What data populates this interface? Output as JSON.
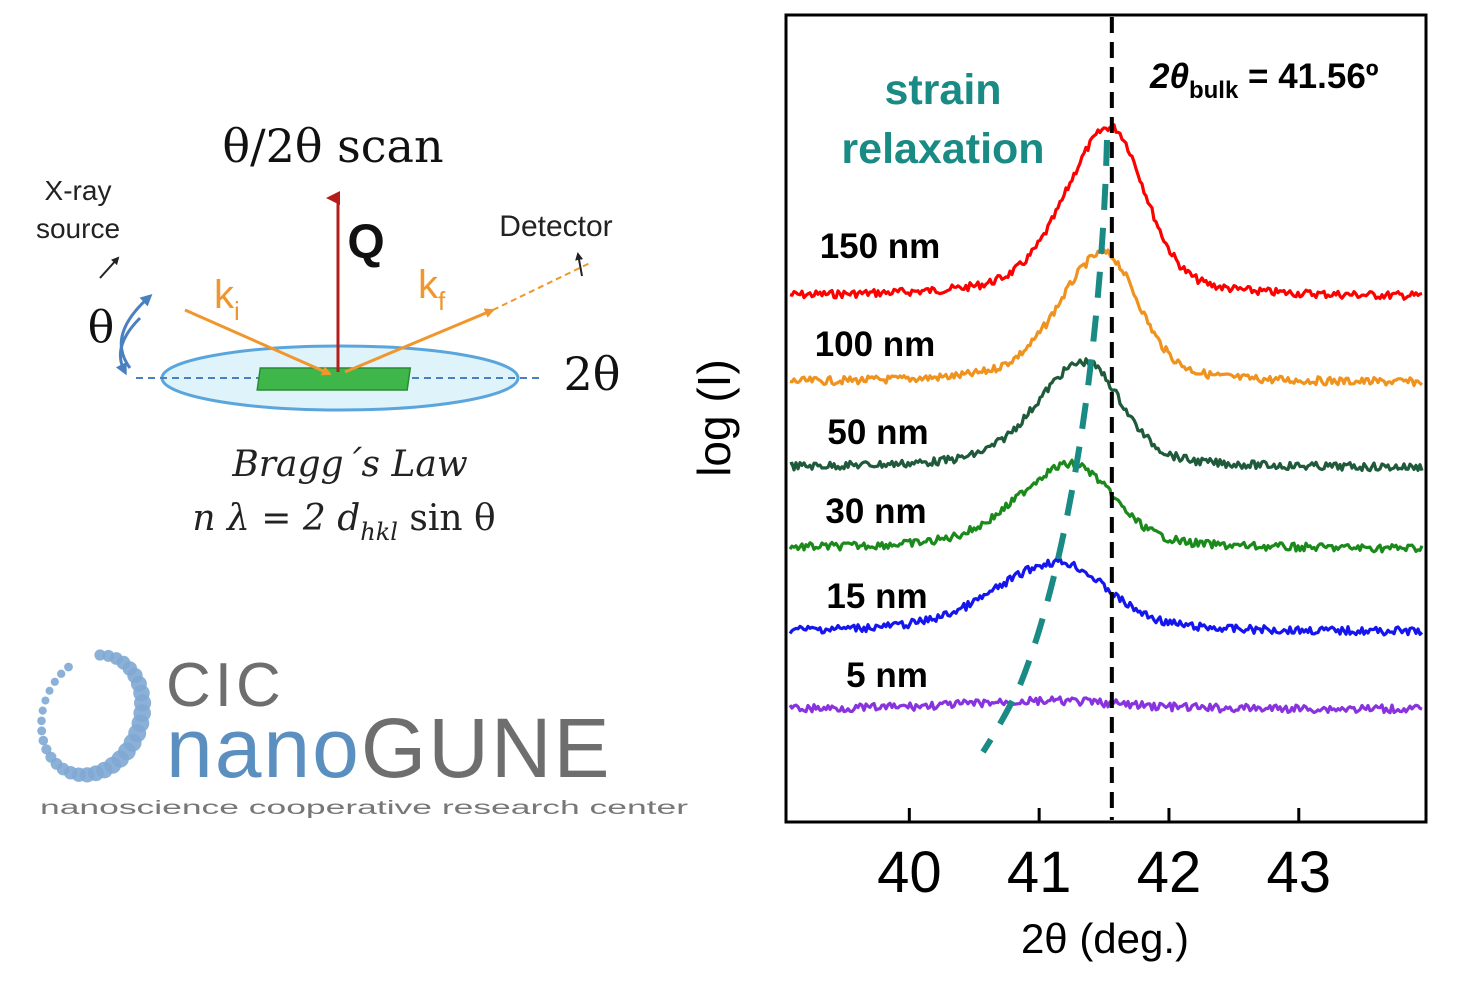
{
  "diagram": {
    "title": "θ/2θ scan",
    "source_label_line1": "X-ray",
    "source_label_line2": "source",
    "detector_label": "Detector",
    "q_label": "Q",
    "ki_label": "k",
    "ki_sub": "i",
    "kf_label": "k",
    "kf_sub": "f",
    "theta_label": "θ",
    "two_theta_label": "2θ",
    "bragg_title": "Bragg´s Law",
    "bragg_eq_prefix": "n λ = 2 d",
    "bragg_eq_sub": "hkl",
    "bragg_eq_suffix": " sin θ",
    "colors": {
      "beam": "#f0962c",
      "q_arrow": "#b71c1c",
      "sample": "#3fb64a",
      "disk": "#dff3fb",
      "disk_edge": "#5aa6dc",
      "theta_arrow": "#4a80c0"
    }
  },
  "logo": {
    "word1": "CIC",
    "word2a": "nano",
    "word2b": "GUNE",
    "tagline": "nanoscience cooperative research center",
    "colors": {
      "blue": "#5b8fc0",
      "gray": "#6e6e6e",
      "dots": "#7fa9d4"
    }
  },
  "chart_data": {
    "type": "line",
    "xlabel": "2θ (deg.)",
    "ylabel": "log (I)",
    "xlim": [
      39.05,
      43.98
    ],
    "x_ticks": [
      40,
      41,
      42,
      43
    ],
    "y_ticks": false,
    "grid": false,
    "reference_line": {
      "x": 41.56,
      "label_prefix": "2θ",
      "label_sub": "bulk",
      "label_suffix": " = 41.56º",
      "style": "dashed",
      "color": "#000000"
    },
    "annotation": {
      "line1": "strain",
      "line2": "relaxation",
      "color": "#1a8a84"
    },
    "series": [
      {
        "name": "150 nm",
        "color": "#ff0000",
        "peak_x": 41.55,
        "sigma": 0.3
      },
      {
        "name": "100 nm",
        "color": "#f0921e",
        "peak_x": 41.5,
        "sigma": 0.3
      },
      {
        "name": "50 nm",
        "color": "#1f5a3a",
        "peak_x": 41.35,
        "sigma": 0.32
      },
      {
        "name": "30 nm",
        "color": "#1a8a1a",
        "peak_x": 41.25,
        "sigma": 0.36
      },
      {
        "name": "15 nm",
        "color": "#1515ee",
        "peak_x": 41.15,
        "sigma": 0.42
      },
      {
        "name": "5 nm",
        "color": "#8833dd",
        "peak_x": 41.1,
        "sigma": 0.6
      }
    ]
  }
}
